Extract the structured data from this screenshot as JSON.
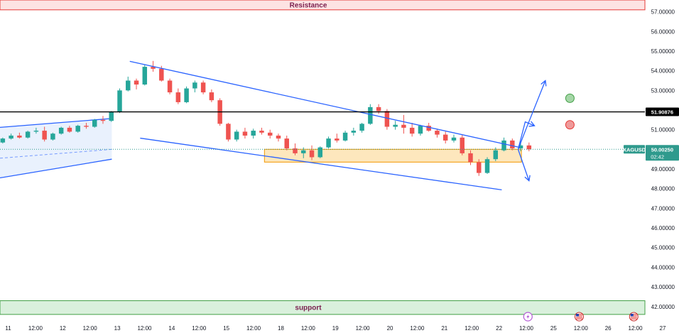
{
  "chart_data": {
    "type": "candlestick",
    "symbol": "XAGUSD",
    "ylim": [
      41.45,
      57.6
    ],
    "y_ticks": [
      42,
      43,
      44,
      45,
      46,
      47,
      48,
      49,
      50,
      51,
      52,
      53,
      54,
      55,
      56,
      57
    ],
    "y_tick_labels": [
      "42.00000",
      "43.00000",
      "44.00000",
      "45.00000",
      "46.00000",
      "47.00000",
      "48.00000",
      "49.00000",
      "50.00000",
      "51.00000",
      "52.00000",
      "53.00000",
      "54.00000",
      "55.00000",
      "56.00000",
      "57.00000"
    ],
    "x_ticks": [
      {
        "label": "11",
        "t": 0.3
      },
      {
        "label": "12:00",
        "t": 0.8
      },
      {
        "label": "12",
        "t": 1.3
      },
      {
        "label": "12:00",
        "t": 1.8
      },
      {
        "label": "13",
        "t": 2.3
      },
      {
        "label": "12:00",
        "t": 2.8
      },
      {
        "label": "14",
        "t": 3.3
      },
      {
        "label": "12:00",
        "t": 3.8
      },
      {
        "label": "15",
        "t": 4.3
      },
      {
        "label": "12:00",
        "t": 4.8
      },
      {
        "label": "18",
        "t": 5.3
      },
      {
        "label": "12:00",
        "t": 5.8
      },
      {
        "label": "19",
        "t": 6.3
      },
      {
        "label": "12:00",
        "t": 6.8
      },
      {
        "label": "20",
        "t": 7.3
      },
      {
        "label": "12:00",
        "t": 7.8
      },
      {
        "label": "21",
        "t": 8.3
      },
      {
        "label": "12:00",
        "t": 8.8
      },
      {
        "label": "22",
        "t": 9.3
      },
      {
        "label": "12:00",
        "t": 9.8
      },
      {
        "label": "25",
        "t": 10.3
      },
      {
        "label": "12:00",
        "t": 10.8
      },
      {
        "label": "26",
        "t": 11.3
      },
      {
        "label": "12:00",
        "t": 11.8
      },
      {
        "label": "27",
        "t": 12.3
      }
    ],
    "t_range": [
      0.15,
      12.6
    ],
    "current_price": {
      "symbol": "XAGUSD",
      "value": 50.0025,
      "label": "50.00250",
      "countdown": "02:42"
    },
    "horizontal_line": {
      "value": 51.90876,
      "label": "51.90876"
    },
    "zones": [
      {
        "name": "Resistance",
        "low": 57.1,
        "high": 57.6,
        "label": "Resistance"
      },
      {
        "name": "support",
        "low": 41.6,
        "high": 42.3,
        "label": "support"
      }
    ],
    "demand_box": {
      "t0": 5.0,
      "t1": 9.71,
      "low": 49.35,
      "high": 50.0
    },
    "channel_upper": {
      "t0": 2.53,
      "v0": 54.48,
      "t1": 9.68,
      "v1": 50.1
    },
    "channel_lower": {
      "t0": 2.72,
      "v0": 50.57,
      "t1": 9.35,
      "v1": 47.94
    },
    "left_channel": {
      "t0": 0.15,
      "t1": 2.2,
      "upper": [
        51.12,
        51.57
      ],
      "lower": [
        48.55,
        49.5
      ],
      "mid": [
        49.55,
        50.0
      ]
    },
    "projections": [
      {
        "path": [
          [
            9.65,
            50.0
          ],
          [
            9.79,
            51.0
          ],
          [
            10.15,
            53.5
          ]
        ],
        "direction": "up"
      },
      {
        "path": [
          [
            9.65,
            50.0
          ],
          [
            9.78,
            51.4
          ],
          [
            9.95,
            51.2
          ]
        ],
        "direction": "side"
      },
      {
        "path": [
          [
            9.65,
            50.0
          ],
          [
            9.85,
            48.4
          ]
        ],
        "direction": "down"
      }
    ],
    "markers": [
      {
        "name": "green-target",
        "t": 10.6,
        "v": 52.6,
        "color": "#a5d6a7",
        "stroke": "#43a047"
      },
      {
        "name": "red-target",
        "t": 10.6,
        "v": 51.25,
        "color": "#ef9a9a",
        "stroke": "#e53935"
      }
    ],
    "ohlc": [
      [
        50.35,
        50.6,
        50.3,
        50.55
      ],
      [
        50.55,
        50.8,
        50.5,
        50.7
      ],
      [
        50.7,
        50.85,
        50.55,
        50.6
      ],
      [
        50.6,
        50.95,
        50.55,
        50.9
      ],
      [
        50.9,
        51.1,
        50.8,
        50.95
      ],
      [
        50.95,
        51.15,
        50.4,
        50.5
      ],
      [
        50.5,
        50.85,
        50.45,
        50.8
      ],
      [
        50.8,
        51.15,
        50.75,
        51.1
      ],
      [
        51.1,
        51.2,
        50.85,
        50.9
      ],
      [
        50.9,
        51.25,
        50.85,
        51.2
      ],
      [
        51.2,
        51.35,
        51.05,
        51.15
      ],
      [
        51.15,
        51.55,
        51.1,
        51.5
      ],
      [
        51.5,
        51.7,
        51.3,
        51.45
      ],
      [
        51.45,
        51.95,
        51.4,
        51.9
      ],
      [
        51.9,
        53.1,
        51.85,
        53.0
      ],
      [
        53.0,
        53.7,
        52.95,
        53.5
      ],
      [
        53.5,
        53.6,
        53.05,
        53.3
      ],
      [
        53.3,
        54.3,
        53.25,
        54.2
      ],
      [
        54.2,
        54.5,
        53.95,
        54.1
      ],
      [
        54.1,
        54.25,
        53.45,
        53.5
      ],
      [
        53.5,
        53.6,
        52.8,
        52.9
      ],
      [
        52.9,
        53.1,
        52.3,
        52.4
      ],
      [
        52.4,
        53.2,
        52.35,
        53.1
      ],
      [
        53.1,
        53.5,
        52.9,
        53.4
      ],
      [
        53.4,
        53.5,
        52.8,
        52.9
      ],
      [
        52.9,
        53.05,
        52.4,
        52.5
      ],
      [
        52.5,
        52.6,
        51.2,
        51.3
      ],
      [
        51.3,
        51.35,
        50.4,
        50.5
      ],
      [
        50.5,
        51.0,
        50.4,
        50.9
      ],
      [
        50.9,
        51.1,
        50.55,
        50.7
      ],
      [
        50.7,
        51.05,
        50.55,
        50.95
      ],
      [
        50.95,
        51.1,
        50.75,
        50.85
      ],
      [
        50.85,
        51.0,
        50.55,
        50.7
      ],
      [
        50.7,
        50.8,
        50.4,
        50.55
      ],
      [
        50.55,
        50.7,
        49.95,
        50.05
      ],
      [
        50.05,
        50.3,
        49.7,
        49.8
      ],
      [
        49.8,
        50.1,
        49.55,
        49.95
      ],
      [
        49.95,
        50.2,
        49.45,
        49.6
      ],
      [
        49.6,
        50.15,
        49.55,
        50.1
      ],
      [
        50.1,
        50.65,
        50.05,
        50.55
      ],
      [
        50.55,
        50.8,
        50.35,
        50.45
      ],
      [
        50.45,
        50.95,
        50.4,
        50.85
      ],
      [
        50.85,
        51.1,
        50.7,
        50.95
      ],
      [
        50.95,
        51.35,
        50.85,
        51.3
      ],
      [
        51.3,
        52.3,
        51.25,
        52.15
      ],
      [
        52.15,
        52.3,
        51.8,
        51.95
      ],
      [
        51.95,
        52.05,
        51.0,
        51.15
      ],
      [
        51.15,
        51.45,
        51.0,
        51.25
      ],
      [
        51.25,
        51.75,
        50.8,
        51.1
      ],
      [
        51.1,
        51.35,
        50.65,
        50.8
      ],
      [
        50.8,
        51.25,
        50.7,
        51.2
      ],
      [
        51.2,
        51.35,
        50.9,
        50.95
      ],
      [
        50.95,
        51.05,
        50.6,
        50.75
      ],
      [
        50.75,
        50.9,
        50.3,
        50.45
      ],
      [
        50.45,
        50.75,
        50.35,
        50.6
      ],
      [
        50.6,
        50.75,
        49.7,
        49.8
      ],
      [
        49.8,
        49.95,
        49.2,
        49.35
      ],
      [
        49.35,
        49.5,
        48.65,
        48.8
      ],
      [
        48.8,
        49.6,
        48.75,
        49.5
      ],
      [
        49.5,
        50.1,
        49.4,
        49.95
      ],
      [
        49.95,
        50.6,
        49.9,
        50.45
      ],
      [
        50.45,
        50.55,
        49.95,
        50.05
      ],
      [
        50.05,
        50.4,
        49.9,
        50.2
      ],
      [
        50.2,
        50.35,
        49.9,
        50.0
      ]
    ]
  },
  "labels": {
    "resistance": "Resistance",
    "support": "support",
    "hline_price": "51.90876",
    "current_symbol": "XAGUSD",
    "current_price": "50.00250",
    "countdown": "02:42"
  },
  "colors": {
    "up": "#26a69a",
    "down": "#ef5350",
    "trendline": "#2962ff",
    "resistance_fill": "#fde3e3",
    "resistance_stroke": "#e53935",
    "support_fill": "#d9f0dc",
    "support_stroke": "#43a047",
    "box_fill": "#fde7bd",
    "box_stroke": "#f5a623",
    "hline": "#000000",
    "price_badge": "#2f9a8d",
    "left_channel_fill": "#e3eefc"
  },
  "event_icons": [
    {
      "name": "lightning-icon",
      "t": 9.83
    },
    {
      "name": "us-flag-icon",
      "t": 10.77
    },
    {
      "name": "us-flag-icon",
      "t": 11.77
    }
  ]
}
